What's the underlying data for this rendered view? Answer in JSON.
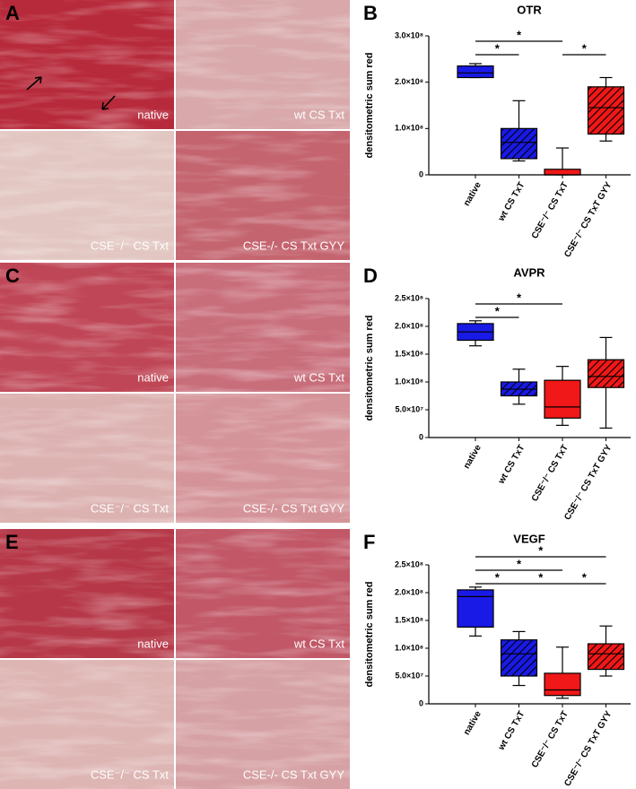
{
  "micrographs": [
    {
      "panel": "A",
      "labels": [
        "native",
        "wt CS Txt",
        "CSE⁻/⁻ CS Txt",
        "CSE-/- CS Txt GYY"
      ]
    },
    {
      "panel": "C",
      "labels": [
        "native",
        "wt CS Txt",
        "CSE⁻/⁻ CS Txt",
        "CSE-/- CS Txt GYY"
      ]
    },
    {
      "panel": "E",
      "labels": [
        "native",
        "wt CS Txt",
        "CSE⁻/⁻ CS Txt",
        "CSE-/- CS Txt GYY"
      ]
    }
  ],
  "chart_data": [
    {
      "type": "box",
      "panel": "B",
      "title": "OTR",
      "ylabel": "densitometric sum red",
      "categories": [
        "native",
        "wt CS TxT",
        "CSE⁻/⁻ CS TxT",
        "CSE⁻/⁻ CS TxT GYY"
      ],
      "colors": [
        "#1a1ae6",
        "#1a1ae6",
        "#f01818",
        "#f01818"
      ],
      "hatched": [
        false,
        true,
        false,
        true
      ],
      "boxes": [
        {
          "min": 210000000,
          "q1": 210000000,
          "median": 220000000,
          "q3": 235000000,
          "max": 240000000
        },
        {
          "min": 30000000,
          "q1": 35000000,
          "median": 70000000,
          "q3": 100000000,
          "max": 160000000
        },
        {
          "min": 0,
          "q1": 0,
          "median": 0,
          "q3": 12000000,
          "max": 58000000
        },
        {
          "min": 73000000,
          "q1": 88000000,
          "median": 145000000,
          "q3": 190000000,
          "max": 210000000
        }
      ],
      "ylim": [
        0,
        300000000
      ],
      "yticks": [
        0,
        {
          "value": 100000000,
          "label": "1.0×10⁸"
        },
        {
          "value": 200000000,
          "label": "2.0×10⁸"
        },
        {
          "value": 300000000,
          "label": "3.0×10⁸"
        }
      ],
      "significance": [
        {
          "between": [
            0,
            1
          ],
          "label": "*"
        },
        {
          "between": [
            0,
            2
          ],
          "label": "*"
        },
        {
          "between": [
            2,
            3
          ],
          "label": "*"
        }
      ]
    },
    {
      "type": "box",
      "panel": "D",
      "title": "AVPR",
      "ylabel": "densitometric sum red",
      "categories": [
        "native",
        "wt CS TxT",
        "CSE⁻/⁻ CS TxT",
        "CSE⁻/⁻ CS TxT GYY"
      ],
      "colors": [
        "#1a1ae6",
        "#1a1ae6",
        "#f01818",
        "#f01818"
      ],
      "hatched": [
        false,
        true,
        false,
        true
      ],
      "boxes": [
        {
          "min": 165000000,
          "q1": 175000000,
          "median": 190000000,
          "q3": 205000000,
          "max": 210000000
        },
        {
          "min": 60000000,
          "q1": 75000000,
          "median": 87000000,
          "q3": 100000000,
          "max": 123000000
        },
        {
          "min": 22000000,
          "q1": 35000000,
          "median": 55000000,
          "q3": 103000000,
          "max": 128000000
        },
        {
          "min": 17000000,
          "q1": 90000000,
          "median": 110000000,
          "q3": 140000000,
          "max": 180000000
        }
      ],
      "ylim": [
        0,
        250000000
      ],
      "yticks": [
        0,
        {
          "value": 50000000,
          "label": "5.0×10⁷"
        },
        {
          "value": 100000000,
          "label": "1.0×10⁸"
        },
        {
          "value": 150000000,
          "label": "1.5×10⁸"
        },
        {
          "value": 200000000,
          "label": "2.0×10⁸"
        },
        {
          "value": 250000000,
          "label": "2.5×10⁸"
        }
      ],
      "significance": [
        {
          "between": [
            0,
            1
          ],
          "label": "*"
        },
        {
          "between": [
            0,
            2
          ],
          "label": "*"
        }
      ]
    },
    {
      "type": "box",
      "panel": "F",
      "title": "VEGF",
      "ylabel": "densitometric sum red",
      "categories": [
        "native",
        "wt CS TxT",
        "CSE⁻/⁻ CS TxT",
        "CSE⁻/⁻ CS TxT GYY"
      ],
      "colors": [
        "#1a1ae6",
        "#1a1ae6",
        "#f01818",
        "#f01818"
      ],
      "hatched": [
        false,
        true,
        false,
        true
      ],
      "boxes": [
        {
          "min": 122000000,
          "q1": 138000000,
          "median": 193000000,
          "q3": 205000000,
          "max": 210000000
        },
        {
          "min": 33000000,
          "q1": 50000000,
          "median": 90000000,
          "q3": 115000000,
          "max": 130000000
        },
        {
          "min": 10000000,
          "q1": 15000000,
          "median": 25000000,
          "q3": 55000000,
          "max": 102000000
        },
        {
          "min": 50000000,
          "q1": 62000000,
          "median": 90000000,
          "q3": 108000000,
          "max": 140000000
        }
      ],
      "ylim": [
        0,
        250000000
      ],
      "yticks": [
        0,
        {
          "value": 50000000,
          "label": "5.0×10⁷"
        },
        {
          "value": 100000000,
          "label": "1.0×10⁸"
        },
        {
          "value": 150000000,
          "label": "1.5×10⁸"
        },
        {
          "value": 200000000,
          "label": "2.0×10⁸"
        },
        {
          "value": 250000000,
          "label": "2.5×10⁸"
        }
      ],
      "significance": [
        {
          "between": [
            0,
            1
          ],
          "label": "*"
        },
        {
          "between": [
            1,
            2
          ],
          "label": "*"
        },
        {
          "between": [
            2,
            3
          ],
          "label": "*"
        },
        {
          "between": [
            0,
            2
          ],
          "label": "*"
        },
        {
          "between": [
            0,
            3
          ],
          "label": "*"
        }
      ]
    }
  ]
}
